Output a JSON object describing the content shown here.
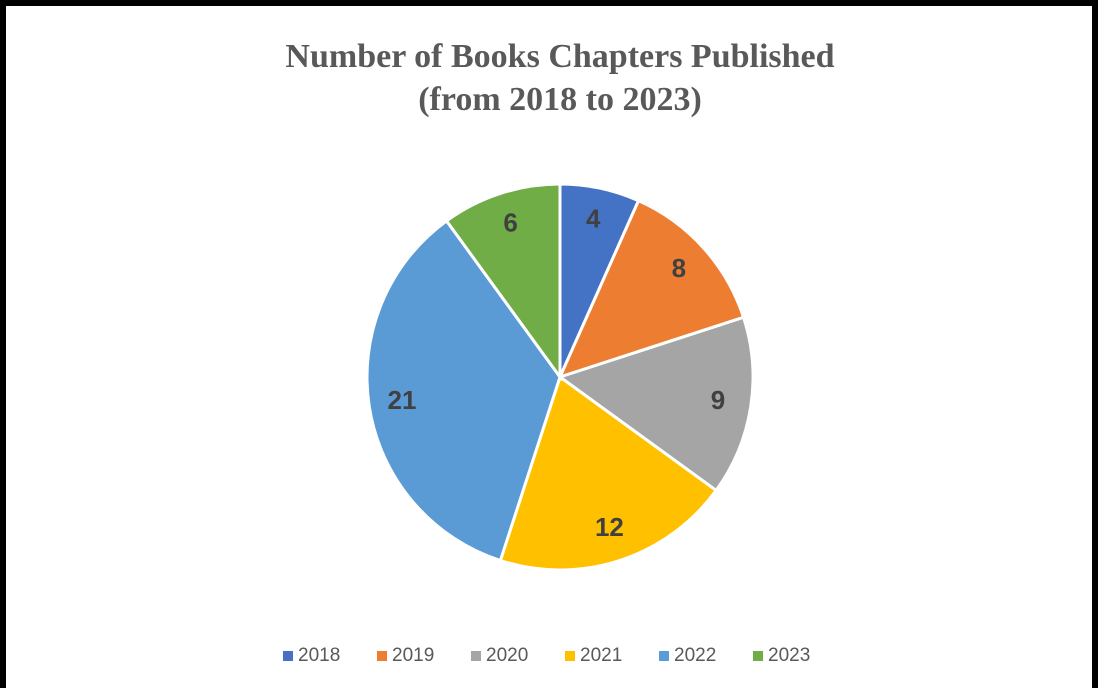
{
  "chart_data": {
    "type": "pie",
    "title": "Number of Books Chapters Published",
    "subtitle": "(from 2018 to 2023)",
    "categories": [
      "2018",
      "2019",
      "2020",
      "2021",
      "2022",
      "2023"
    ],
    "values": [
      4,
      8,
      9,
      12,
      21,
      6
    ],
    "colors": [
      "#4472c4",
      "#ed7d31",
      "#a5a5a5",
      "#ffc000",
      "#5b9bd5",
      "#70ad47"
    ],
    "legend": "bottom"
  }
}
